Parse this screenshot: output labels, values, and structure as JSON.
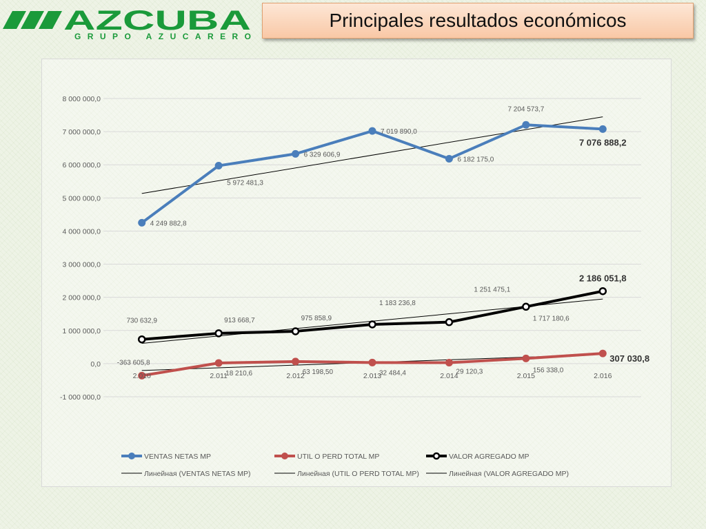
{
  "header": {
    "logo_text": "AZCUBA",
    "logo_subtitle": "GRUPO AZUCARERO",
    "title": "Principales resultados económicos"
  },
  "colors": {
    "brand_green": "#1a9a3a",
    "ventas": "#4a7ebb",
    "util": "#c0504d",
    "valor": "#000000"
  },
  "chart_data": {
    "type": "line",
    "categories": [
      "2.010",
      "2.011",
      "2.012",
      "2.013",
      "2.014",
      "2.015",
      "2.016"
    ],
    "ylim": [
      -1000000,
      8000000
    ],
    "yticks": [
      -1000000,
      0,
      1000000,
      2000000,
      3000000,
      4000000,
      5000000,
      6000000,
      7000000,
      8000000
    ],
    "ytick_labels": [
      "-1 000 000,0",
      "0,0",
      "1 000 000,0",
      "2 000 000,0",
      "3 000 000,0",
      "4 000 000,0",
      "5 000 000,0",
      "6 000 000,0",
      "7 000 000,0",
      "8 000 000,0"
    ],
    "grid": true,
    "legend_position": "bottom",
    "series": [
      {
        "name": "VENTAS NETAS MP",
        "color": "#4a7ebb",
        "values": [
          4249882.8,
          5972481.3,
          6329606.9,
          7019890.0,
          6182175.0,
          7204573.7,
          7076888.2
        ],
        "labels": [
          "4 249 882,8",
          "5 972 481,3",
          "6 329 606,9",
          "7 019 890,0",
          "6 182 175,0",
          "7 204 573,7",
          "7 076 888,2"
        ]
      },
      {
        "name": "UTIL O PERD TOTAL MP",
        "color": "#c0504d",
        "values": [
          -363605.8,
          18210.6,
          63198.5,
          32484.4,
          29120.3,
          156338.0,
          307030.8
        ],
        "labels": [
          "-363 605,8",
          "18 210,6",
          "63 198,50",
          "32 484,4",
          "29 120,3",
          "156 338,0",
          "307 030,8"
        ]
      },
      {
        "name": "VALOR AGREGADO MP",
        "color": "#000000",
        "values": [
          730632.9,
          913668.7,
          975858.9,
          1183236.8,
          1251475.1,
          1717180.6,
          2186051.8
        ],
        "labels": [
          "730 632,9",
          "913 668,7",
          "975 858,9",
          "1 183 236,8",
          "1 251 475,1",
          "1 717 180,6",
          "2 186 051,8"
        ]
      }
    ],
    "trendlines": [
      {
        "name": "Линейная (VENTAS NETAS MP)",
        "of": "VENTAS NETAS MP"
      },
      {
        "name": "Линейная (UTIL O PERD TOTAL MP)",
        "of": "UTIL O PERD TOTAL MP"
      },
      {
        "name": "Линейная (VALOR AGREGADO MP)",
        "of": "VALOR AGREGADO MP"
      }
    ]
  }
}
